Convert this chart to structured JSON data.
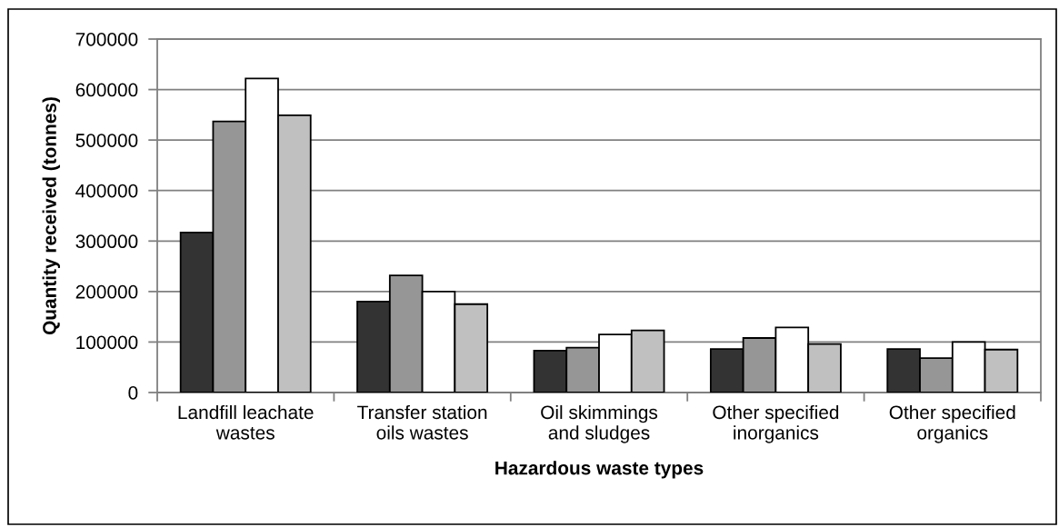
{
  "chart_data": {
    "type": "bar",
    "xlabel": "Hazardous waste types",
    "ylabel": "Quantity received (tonnes)",
    "categories": [
      "Landfill leachate\nwastes",
      "Transfer station\noils wastes",
      "Oil skimmings\nand sludges",
      "Other specified\ninorganics",
      "Other specified\norganics"
    ],
    "series": [
      {
        "color": "#333333",
        "values": [
          317000,
          180000,
          83000,
          86000,
          86000
        ]
      },
      {
        "color": "#969696",
        "values": [
          537000,
          232000,
          89000,
          108000,
          68000
        ]
      },
      {
        "color": "#ffffff",
        "values": [
          622000,
          200000,
          115000,
          129000,
          100000
        ]
      },
      {
        "color": "#c0c0c0",
        "values": [
          549000,
          175000,
          123000,
          96000,
          85000
        ]
      }
    ],
    "ylim": [
      0,
      700000
    ],
    "yticks": [
      0,
      100000,
      200000,
      300000,
      400000,
      500000,
      600000,
      700000
    ],
    "grid": "y"
  }
}
